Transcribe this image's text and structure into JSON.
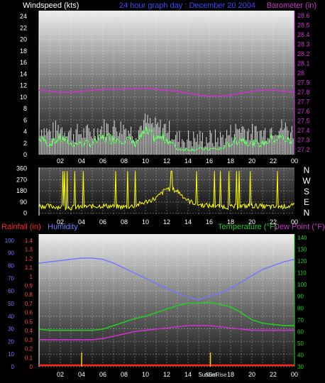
{
  "chart_data": [
    {
      "type": "line",
      "title": "24 hour graph day : December 20 2004",
      "left_label": "Windspeed (kts)",
      "right_label": "Barometer (in)",
      "x_ticks": [
        "02",
        "04",
        "06",
        "08",
        "10",
        "12",
        "14",
        "16",
        "18",
        "20",
        "22",
        "00"
      ],
      "y_left_ticks": [
        0,
        2,
        4,
        6,
        8,
        10,
        12,
        14,
        16,
        18,
        20,
        22,
        24
      ],
      "y_left_lim": [
        0,
        25
      ],
      "y_right_ticks": [
        "27.2",
        "27.3",
        "27.4",
        "27.5",
        "27.6",
        "27.7",
        "27.8",
        "27.9",
        "28",
        "28.1",
        "28.2",
        "28.3",
        "28.4",
        "28.5",
        "28.6"
      ],
      "y_right_lim": [
        27.15,
        28.65
      ],
      "colors": {
        "wind": "#cccccc",
        "gust": "#55ff55",
        "barometer": "#cc33cc"
      },
      "series": [
        {
          "name": "barometer",
          "axis": "right",
          "x": [
            0,
            1,
            2,
            3,
            4,
            5,
            6,
            7,
            8,
            9,
            10,
            11,
            12,
            13,
            14,
            15,
            16,
            17,
            18,
            19,
            20,
            21,
            22,
            23,
            24
          ],
          "values": [
            27.82,
            27.81,
            27.8,
            27.8,
            27.81,
            27.82,
            27.83,
            27.83,
            27.83,
            27.84,
            27.84,
            27.83,
            27.82,
            27.81,
            27.79,
            27.77,
            27.76,
            27.76,
            27.77,
            27.79,
            27.81,
            27.82,
            27.82,
            27.81,
            27.8
          ]
        },
        {
          "name": "wind",
          "axis": "left",
          "x": [
            0,
            1,
            2,
            3,
            4,
            5,
            6,
            7,
            8,
            9,
            10,
            11,
            12,
            13,
            14,
            15,
            16,
            17,
            18,
            19,
            20,
            21,
            22,
            23,
            24
          ],
          "values": [
            3,
            2,
            3,
            2,
            2,
            2,
            3,
            3,
            3,
            2,
            4,
            3,
            3,
            1,
            1,
            1,
            1,
            1,
            2,
            3,
            2,
            2,
            3,
            3,
            2
          ]
        }
      ]
    },
    {
      "type": "scatter",
      "left_label": "",
      "y_left_ticks": [
        0,
        90,
        180,
        270,
        360
      ],
      "y_left_lim": [
        -20,
        370
      ],
      "compass_labels": [
        "N",
        "W",
        "S",
        "E",
        "N"
      ],
      "x_ticks": [
        "02",
        "04",
        "06",
        "08",
        "10",
        "12",
        "14",
        "16",
        "18",
        "20",
        "22",
        "00"
      ],
      "colors": {
        "direction": "#ffff00"
      },
      "series": [
        {
          "name": "wind direction",
          "x": [
            0,
            1,
            2,
            3,
            4,
            5,
            6,
            7,
            8,
            9,
            10,
            11,
            12,
            13,
            14,
            15,
            16,
            17,
            18,
            19,
            20,
            21,
            22,
            23,
            24
          ],
          "values": [
            60,
            55,
            50,
            45,
            50,
            55,
            60,
            55,
            50,
            60,
            90,
            120,
            200,
            180,
            100,
            70,
            60,
            55,
            50,
            55,
            60,
            55,
            50,
            55,
            60
          ]
        }
      ]
    },
    {
      "type": "line",
      "labels": {
        "rainfall": "Rainfall (in)",
        "humidity": "Humidity",
        "temperature": "Temperature (°F)",
        "dewpoint": "Dew Point (°F)"
      },
      "x_ticks": [
        "02",
        "04",
        "06",
        "08",
        "10",
        "12",
        "14",
        "16",
        "18",
        "20",
        "22",
        "00"
      ],
      "sun_labels": [
        "SunRise",
        "SunSet"
      ],
      "y_humidity_ticks": [
        0,
        10,
        20,
        30,
        40,
        50,
        60,
        70,
        80,
        90,
        100
      ],
      "y_rain_ticks": [
        "0",
        "0.1",
        "0.2",
        "0.3",
        "0.4",
        "0.5",
        "0.6",
        "0.7",
        "0.8",
        "0.9",
        "1",
        "1.1",
        "1.2",
        "1.3",
        "1.4"
      ],
      "y_temp_ticks": [
        30,
        40,
        50,
        60,
        70,
        80,
        90,
        100,
        110,
        120,
        130,
        140
      ],
      "humidity_lim": [
        0,
        105
      ],
      "temp_lim": [
        30,
        143
      ],
      "colors": {
        "humidity": "#7777ff",
        "temperature": "#22cc22",
        "dewpoint": "#cc33cc",
        "rainfall": "#ff2222",
        "sun": "#ffcc00"
      },
      "series": [
        {
          "name": "Humidity",
          "x": [
            0,
            1,
            2,
            3,
            4,
            5,
            6,
            7,
            8,
            9,
            10,
            11,
            12,
            13,
            14,
            15,
            16,
            17,
            18,
            19,
            20,
            21,
            22,
            23,
            24
          ],
          "values": [
            82,
            83,
            84,
            85,
            86,
            86,
            85,
            82,
            78,
            74,
            70,
            66,
            62,
            58,
            55,
            53,
            56,
            58,
            62,
            67,
            72,
            77,
            80,
            83,
            85
          ]
        },
        {
          "name": "Temperature",
          "x": [
            0,
            1,
            2,
            3,
            4,
            5,
            6,
            7,
            8,
            9,
            10,
            11,
            12,
            13,
            14,
            15,
            16,
            17,
            18,
            19,
            20,
            21,
            22,
            23,
            24
          ],
          "values": [
            62,
            61,
            61,
            61,
            61,
            61,
            62,
            65,
            68,
            71,
            73,
            76,
            79,
            82,
            84,
            84,
            85,
            83,
            81,
            76,
            70,
            67,
            66,
            65,
            65
          ]
        },
        {
          "name": "Dew Point",
          "x": [
            0,
            1,
            2,
            3,
            4,
            5,
            6,
            7,
            8,
            9,
            10,
            11,
            12,
            13,
            14,
            15,
            16,
            17,
            18,
            19,
            20,
            21,
            22,
            23,
            24
          ],
          "values": [
            53,
            53,
            53,
            53,
            53,
            53,
            54,
            56,
            58,
            60,
            61,
            62,
            63,
            64,
            65,
            65,
            65,
            64,
            63,
            62,
            61,
            61,
            61,
            61,
            61
          ]
        },
        {
          "name": "Rainfall",
          "x": [
            0,
            24
          ],
          "values": [
            0,
            0
          ]
        }
      ],
      "sun_events": [
        4.0,
        16.1
      ]
    }
  ]
}
